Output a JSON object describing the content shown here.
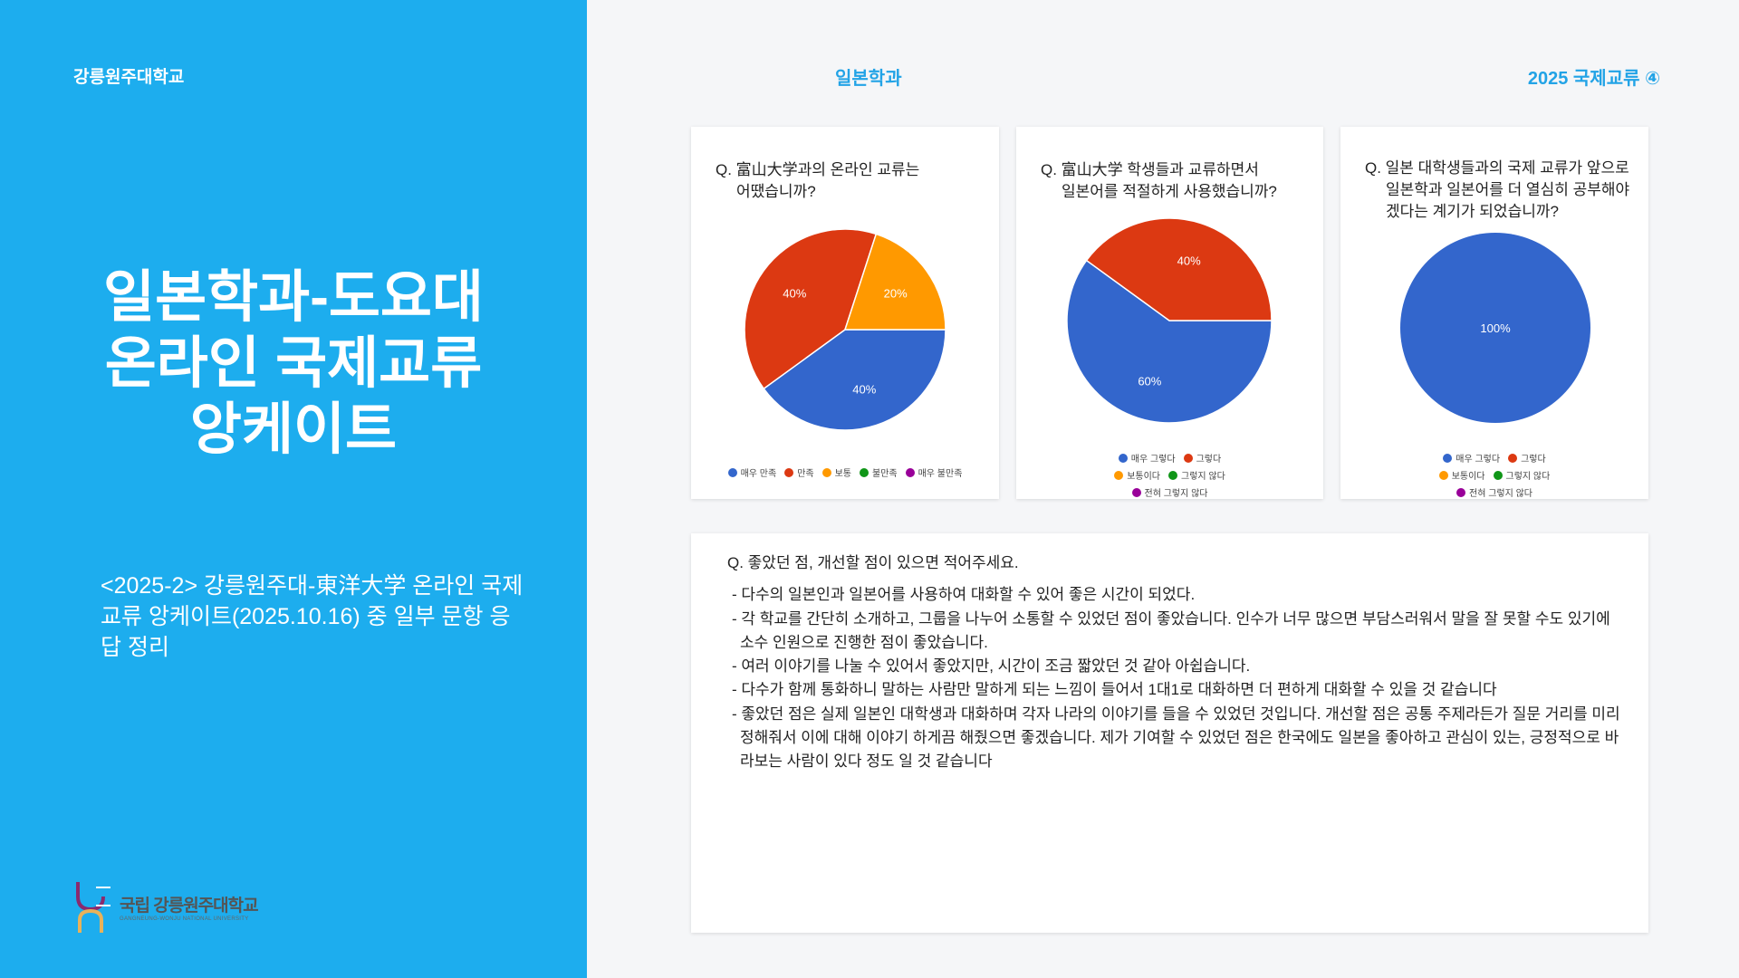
{
  "left": {
    "university": "강릉원주대학교",
    "title_lines": [
      "일본학과-도요대",
      "온라인 국제교류",
      "앙케이트"
    ],
    "subtitle": "<2025-2> 강릉원주대-東洋大学 온라인 국제교류 앙케이트(2025.10.16) 중 일부 문항 응답 정리",
    "logo_ko": "국립 강릉원주대학교",
    "logo_en": "GANGNEUNG-WONJU NATIONAL UNIVERSITY"
  },
  "header": {
    "center": "일본학과",
    "right": "2025 국제교류 ④"
  },
  "colors": {
    "panel": "#1dadee",
    "accent": "#22a3e6"
  },
  "chart_data": [
    {
      "type": "pie",
      "title": "Q. 富山大学과의 온라인 교류는 어땠습니까?",
      "title_lines": [
        "Q. 富山大学과의 온라인 교류는",
        "어땠습니까?"
      ],
      "series": [
        {
          "name": "매우 만족",
          "value": 40,
          "label": "40%",
          "color": "#3366cc"
        },
        {
          "name": "만족",
          "value": 40,
          "label": "40%",
          "color": "#dc3912"
        },
        {
          "name": "보통",
          "value": 20,
          "label": "20%",
          "color": "#ff9900"
        },
        {
          "name": "불만족",
          "value": 0,
          "color": "#109618"
        },
        {
          "name": "매우 불만족",
          "value": 0,
          "color": "#990099"
        }
      ],
      "legend": "bottom"
    },
    {
      "type": "pie",
      "title": "Q. 富山大学 학생들과 교류하면서 일본어를 적절하게 사용했습니까?",
      "title_lines": [
        "Q. 富山大学 학생들과 교류하면서",
        "일본어를 적절하게 사용했습니까?"
      ],
      "series": [
        {
          "name": "매우 그렇다",
          "value": 60,
          "label": "60%",
          "color": "#3366cc"
        },
        {
          "name": "그렇다",
          "value": 40,
          "label": "40%",
          "color": "#dc3912"
        },
        {
          "name": "보통이다",
          "value": 0,
          "color": "#ff9900"
        },
        {
          "name": "그렇지 않다",
          "value": 0,
          "color": "#109618"
        },
        {
          "name": "전혀 그렇지 않다",
          "value": 0,
          "color": "#990099"
        }
      ],
      "legend": "bottom"
    },
    {
      "type": "pie",
      "title": "Q. 일본 대학생들과의 국제 교류가 앞으로 일본학과 일본어를 더 열심히 공부해야겠다는 계기가 되었습니까?",
      "title_lines": [
        "Q. 일본 대학생들과의 국제 교류가 앞으로",
        "일본학과 일본어를 더 열심히 공부해야",
        "겠다는 계기가 되었습니까?"
      ],
      "series": [
        {
          "name": "매우 그렇다",
          "value": 100,
          "label": "100%",
          "color": "#3366cc"
        },
        {
          "name": "그렇다",
          "value": 0,
          "color": "#dc3912"
        },
        {
          "name": "보통이다",
          "value": 0,
          "color": "#ff9900"
        },
        {
          "name": "그렇지 않다",
          "value": 0,
          "color": "#109618"
        },
        {
          "name": "전혀 그렇지 않다",
          "value": 0,
          "color": "#990099"
        }
      ],
      "legend": "bottom"
    }
  ],
  "feedback": {
    "question": "Q. 좋았던 점, 개선할 점이 있으면 적어주세요.",
    "answers": [
      "- 다수의 일본인과 일본어를 사용하여 대화할 수 있어 좋은 시간이 되었다.",
      "- 각 학교를 간단히 소개하고, 그룹을 나누어 소통할 수 있었던 점이 좋았습니다. 인수가 너무 많으면 부담스러워서 말을 잘 못할 수도 있기에 소수 인원으로 진행한 점이 좋았습니다.",
      "- 여러 이야기를 나눌 수 있어서 좋았지만, 시간이 조금 짧았던 것 같아 아쉽습니다.",
      "- 다수가 함께 통화하니 말하는 사람만 말하게 되는 느낌이 들어서 1대1로 대화하면 더 편하게 대화할 수 있을 것 같습니다",
      "- 좋았던 점은 실제 일본인 대학생과 대화하며 각자 나라의 이야기를 들을 수 있었던 것입니다. 개선할 점은 공통 주제라든가 질문 거리를 미리 정해줘서 이에 대해 이야기 하게끔 해줬으면 좋겠습니다. 제가 기여할 수 있었던 점은 한국에도 일본을 좋아하고 관심이 있는, 긍정적으로 바라보는 사람이 있다 정도 일 것 같습니다"
    ]
  }
}
